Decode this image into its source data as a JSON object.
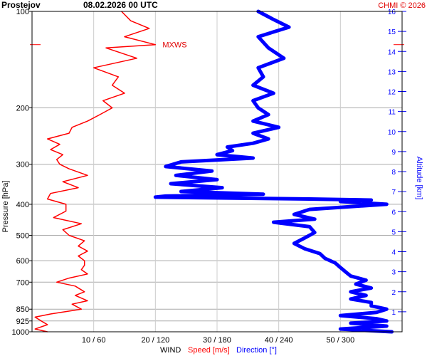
{
  "header": {
    "station": "Prostejov",
    "datetime": "08.02.2026 00 UTC",
    "copyright": "CHMI © 2026"
  },
  "chart_data": {
    "type": "line",
    "y_axis": {
      "label": "Pressure [hPa]",
      "scale": "log",
      "range": [
        1000,
        100
      ],
      "ticks": [
        100,
        200,
        300,
        400,
        500,
        600,
        700,
        850,
        925,
        1000
      ]
    },
    "y2_axis": {
      "label": "Altitude [km]",
      "range": [
        0,
        16
      ],
      "ticks": [
        1,
        2,
        3,
        4,
        5,
        6,
        7,
        8,
        9,
        10,
        11,
        12,
        13,
        14,
        15,
        16
      ]
    },
    "x_axis": {
      "title": "WIND",
      "speed_label": "Speed [m/s]",
      "direction_label": "Direction [°]",
      "speed_range": [
        0,
        60
      ],
      "direction_range": [
        0,
        360
      ],
      "ticks": [
        "10 / 60",
        "20 / 120",
        "30 / 180",
        "40 / 240",
        "50 / 300"
      ]
    },
    "annotation": {
      "text": "MXWS",
      "pressure": 127,
      "speed": 20
    },
    "series": [
      {
        "name": "Speed [m/s]",
        "color": "#ff0000",
        "pressure": [
          1000,
          980,
          950,
          925,
          900,
          880,
          850,
          820,
          800,
          770,
          750,
          720,
          700,
          680,
          660,
          640,
          620,
          600,
          580,
          560,
          540,
          520,
          500,
          480,
          460,
          440,
          420,
          400,
          385,
          370,
          355,
          340,
          325,
          310,
          300,
          290,
          280,
          270,
          260,
          250,
          240,
          230,
          220,
          210,
          200,
          190,
          180,
          170,
          160,
          150,
          140,
          130,
          127,
          120,
          113,
          107,
          100
        ],
        "values": [
          2.5,
          0.5,
          2.5,
          1.5,
          0.5,
          3,
          8,
          6.5,
          9,
          7,
          8.5,
          7,
          4,
          6,
          9,
          8,
          8.5,
          8.5,
          7.5,
          9,
          7.5,
          8.5,
          6,
          5,
          8,
          3.5,
          5.5,
          5.5,
          2.5,
          3,
          7.5,
          5,
          9,
          6,
          4.5,
          4,
          5,
          3,
          4.5,
          2.5,
          6,
          6.5,
          9,
          11,
          13,
          11.5,
          15,
          13,
          14,
          10,
          17,
          12,
          20,
          15,
          19,
          16,
          14.5
        ]
      },
      {
        "name": "Direction [°]",
        "color": "#0000ff",
        "pressure": [
          1000,
          980,
          960,
          940,
          925,
          910,
          890,
          870,
          850,
          830,
          810,
          790,
          770,
          750,
          730,
          710,
          690,
          670,
          650,
          630,
          610,
          590,
          570,
          550,
          530,
          510,
          490,
          470,
          455,
          445,
          430,
          415,
          400,
          392,
          388,
          385,
          380,
          377,
          372,
          365,
          355,
          345,
          335,
          325,
          315,
          305,
          295,
          287,
          280,
          272,
          265,
          258,
          250,
          240,
          230,
          220,
          210,
          200,
          190,
          180,
          170,
          160,
          150,
          140,
          130,
          120,
          112,
          106,
          100
        ],
        "values": [
          350,
          300,
          345,
          310,
          345,
          335,
          300,
          335,
          345,
          330,
          330,
          310,
          325,
          310,
          330,
          315,
          325,
          310,
          305,
          300,
          295,
          285,
          280,
          265,
          255,
          265,
          275,
          270,
          235,
          275,
          255,
          270,
          345,
          300,
          330,
          270,
          120,
          130,
          225,
          145,
          185,
          135,
          180,
          140,
          175,
          130,
          145,
          215,
          180,
          195,
          190,
          215,
          230,
          215,
          240,
          215,
          230,
          220,
          215,
          235,
          215,
          225,
          220,
          245,
          230,
          220,
          250,
          235,
          220
        ]
      }
    ]
  }
}
